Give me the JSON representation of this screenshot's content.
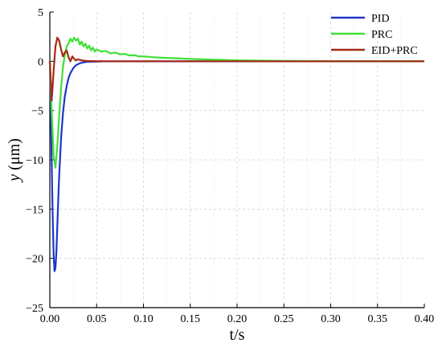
{
  "chart_data": {
    "type": "line",
    "xlabel": "t/s",
    "ylabel_var": "y",
    "ylabel_unit": " (μm)",
    "xlim": [
      0.0,
      0.4
    ],
    "ylim": [
      -25,
      5
    ],
    "grid": true,
    "legend_position": "top-right",
    "x_ticks": [
      "0.00",
      "0.05",
      "0.10",
      "0.15",
      "0.20",
      "0.25",
      "0.30",
      "0.35",
      "0.40"
    ],
    "y_ticks": [
      "5",
      "0",
      "−5",
      "−10",
      "−15",
      "−20",
      "−25"
    ],
    "series": [
      {
        "name": "PID",
        "color": "#1f35c9",
        "x": [
          0.0,
          0.001,
          0.002,
          0.003,
          0.004,
          0.005,
          0.006,
          0.007,
          0.008,
          0.009,
          0.01,
          0.012,
          0.014,
          0.016,
          0.018,
          0.02,
          0.022,
          0.025,
          0.028,
          0.032,
          0.036,
          0.04,
          0.05,
          0.06,
          0.08,
          0.1,
          0.15,
          0.2,
          0.3,
          0.4
        ],
        "y": [
          0.0,
          -4.5,
          -10.0,
          -15.5,
          -19.5,
          -21.3,
          -21.0,
          -19.3,
          -16.8,
          -14.0,
          -11.5,
          -7.8,
          -5.3,
          -3.6,
          -2.5,
          -1.7,
          -1.2,
          -0.7,
          -0.4,
          -0.2,
          -0.1,
          -0.05,
          -0.02,
          0.0,
          0.0,
          0.0,
          0.0,
          0.0,
          0.0,
          0.0
        ]
      },
      {
        "name": "PRC",
        "color": "#3ee034",
        "x": [
          0.0,
          0.002,
          0.004,
          0.006,
          0.008,
          0.01,
          0.012,
          0.014,
          0.016,
          0.018,
          0.02,
          0.022,
          0.024,
          0.026,
          0.028,
          0.03,
          0.032,
          0.034,
          0.036,
          0.038,
          0.04,
          0.042,
          0.044,
          0.046,
          0.048,
          0.05,
          0.055,
          0.06,
          0.065,
          0.07,
          0.075,
          0.08,
          0.085,
          0.09,
          0.095,
          0.1,
          0.11,
          0.12,
          0.13,
          0.14,
          0.15,
          0.17,
          0.2,
          0.25,
          0.3,
          0.4
        ],
        "y": [
          0.0,
          -5.0,
          -9.5,
          -10.8,
          -8.6,
          -5.5,
          -2.7,
          -0.6,
          0.6,
          1.5,
          1.8,
          2.3,
          2.0,
          2.4,
          2.1,
          2.3,
          1.7,
          2.0,
          1.5,
          1.8,
          1.3,
          1.6,
          1.1,
          1.4,
          1.0,
          1.2,
          1.0,
          1.05,
          0.8,
          0.9,
          0.7,
          0.75,
          0.6,
          0.62,
          0.5,
          0.5,
          0.42,
          0.36,
          0.32,
          0.28,
          0.24,
          0.18,
          0.1,
          0.04,
          0.01,
          0.0
        ]
      },
      {
        "name": "EID+PRC",
        "color": "#a52a14",
        "x": [
          0.0,
          0.002,
          0.004,
          0.006,
          0.008,
          0.01,
          0.012,
          0.014,
          0.016,
          0.018,
          0.02,
          0.022,
          0.024,
          0.026,
          0.028,
          0.03,
          0.034,
          0.038,
          0.042,
          0.046,
          0.05,
          0.06,
          0.08,
          0.1,
          0.2,
          0.4
        ],
        "y": [
          0.0,
          -4.0,
          -1.0,
          1.5,
          2.4,
          2.1,
          1.2,
          0.5,
          0.9,
          1.1,
          0.4,
          0.0,
          0.5,
          0.25,
          0.1,
          0.2,
          0.1,
          0.05,
          0.03,
          0.02,
          0.01,
          0.0,
          0.0,
          0.0,
          0.0,
          0.0
        ]
      }
    ]
  }
}
